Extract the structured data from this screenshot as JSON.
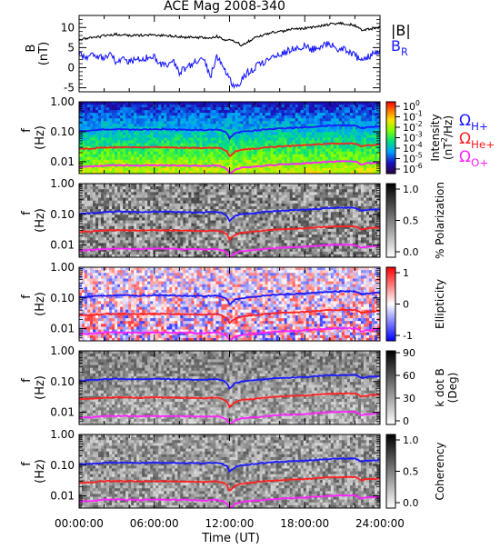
{
  "chart_data": {
    "type": "multi-panel",
    "title": "ACE Mag 2008-340",
    "xlabel": "Time (UT)",
    "x_ticks": [
      "00:00:00",
      "06:00:00",
      "12:00:00",
      "18:00:00",
      "24:00:00"
    ],
    "x_range_hours": [
      0,
      24
    ],
    "panels": [
      {
        "name": "magnetic-field",
        "type": "line",
        "ylabel": "B",
        "yunits": "(nT)",
        "y_ticks": [
          "10",
          "5",
          "0",
          "-5"
        ],
        "ylim": [
          -6,
          13
        ],
        "series": [
          {
            "name": "|B|",
            "color": "#000000",
            "x": [
              0,
              0.5,
              1,
              1.5,
              2,
              2.5,
              3,
              3.5,
              4,
              4.5,
              5,
              5.5,
              6,
              6.5,
              7,
              7.5,
              8,
              8.5,
              9,
              9.5,
              10,
              10.5,
              11,
              11.5,
              12,
              12.5,
              13,
              13.5,
              14,
              14.5,
              15,
              15.5,
              16,
              16.5,
              17,
              17.5,
              18,
              18.5,
              19,
              19.5,
              20,
              20.5,
              21,
              21.5,
              22,
              22.5,
              23,
              23.5,
              24
            ],
            "values": [
              7,
              7.2,
              7.5,
              7.6,
              8,
              8.2,
              8.3,
              8.2,
              8.1,
              8,
              8.1,
              8,
              8.2,
              8,
              8,
              7.8,
              7.8,
              7.5,
              7.6,
              7.5,
              7.5,
              7.3,
              7.8,
              7,
              6.8,
              6.5,
              5.5,
              6.5,
              7.5,
              8,
              8.5,
              8.8,
              9,
              9.2,
              9.5,
              9.7,
              9.8,
              10,
              10.2,
              10.5,
              10.8,
              11,
              11,
              10.8,
              10.5,
              9.5,
              9.5,
              9.8,
              10
            ]
          },
          {
            "name": "B_R",
            "color": "#1a1aff",
            "x": [
              0,
              0.5,
              1,
              1.5,
              2,
              2.5,
              3,
              3.5,
              4,
              4.5,
              5,
              5.5,
              6,
              6.5,
              7,
              7.5,
              8,
              8.5,
              9,
              9.5,
              10,
              10.5,
              11,
              11.5,
              12,
              12.5,
              13,
              13.5,
              14,
              14.5,
              15,
              15.5,
              16,
              16.5,
              17,
              17.5,
              18,
              18.5,
              19,
              19.5,
              20,
              20.5,
              21,
              21.5,
              22,
              22.5,
              23,
              23.5,
              24
            ],
            "values": [
              4,
              2.5,
              3,
              2.5,
              2.5,
              3,
              1.5,
              2,
              1.5,
              2,
              2,
              2.5,
              2.5,
              1,
              0.5,
              1.5,
              -1,
              0,
              1,
              2,
              1.5,
              -2,
              3,
              0,
              -3,
              -5,
              -3,
              -1,
              0,
              1,
              2,
              3,
              3.5,
              4,
              4.5,
              5,
              5.5,
              4.5,
              5,
              5.5,
              6,
              5,
              4.5,
              4,
              3,
              2,
              2.5,
              3.5,
              4
            ]
          }
        ],
        "legend": [
          "|B|",
          "B_R"
        ]
      },
      {
        "name": "intensity",
        "type": "heatmap",
        "ylabel": "f",
        "yunits": "(Hz)",
        "y_ticks": [
          "1.00",
          "0.10",
          "0.01"
        ],
        "ylim": [
          0.004,
          1.0
        ],
        "log_y": true,
        "colorbar": {
          "label": "Intensity",
          "units": "(nT^2/Hz)",
          "ticks": [
            "10^0",
            "10^-1",
            "10^-2",
            "10^-3",
            "10^-4",
            "10^-5",
            "10^-6"
          ],
          "colormap": "rainbow"
        }
      },
      {
        "name": "polarization",
        "type": "heatmap",
        "ylabel": "f",
        "yunits": "(Hz)",
        "y_ticks": [
          "1.00",
          "0.10",
          "0.01"
        ],
        "ylim": [
          0.004,
          1.0
        ],
        "log_y": true,
        "colorbar": {
          "label": "% Polarization",
          "ticks": [
            "1.0",
            "0.5",
            "0.0"
          ],
          "colormap": "gray"
        }
      },
      {
        "name": "ellipticity",
        "type": "heatmap",
        "ylabel": "f",
        "yunits": "(Hz)",
        "y_ticks": [
          "1.00",
          "0.10",
          "0.01"
        ],
        "ylim": [
          0.004,
          1.0
        ],
        "log_y": true,
        "colorbar": {
          "label": "Ellipticity",
          "ticks": [
            "1",
            "0",
            "-1"
          ],
          "colormap": "blue-white-red"
        }
      },
      {
        "name": "k-dot-b",
        "type": "heatmap",
        "ylabel": "f",
        "yunits": "(Hz)",
        "y_ticks": [
          "1.00",
          "0.10",
          "0.01"
        ],
        "ylim": [
          0.004,
          1.0
        ],
        "log_y": true,
        "colorbar": {
          "label": "k dot B",
          "units": "(Deg)",
          "ticks": [
            "90",
            "60",
            "30",
            "0"
          ],
          "colormap": "gray"
        }
      },
      {
        "name": "coherency",
        "type": "heatmap",
        "ylabel": "f",
        "yunits": "(Hz)",
        "y_ticks": [
          "1.00",
          "0.10",
          "0.01"
        ],
        "ylim": [
          0.004,
          1.0
        ],
        "log_y": true,
        "colorbar": {
          "label": "Coherency",
          "ticks": [
            "1.0",
            "0.5",
            "0.0"
          ],
          "colormap": "gray"
        }
      }
    ],
    "gyrofrequency_lines": [
      {
        "name": "Ω_H+",
        "color": "#1a1aff",
        "x": [
          0,
          1,
          2,
          3,
          4,
          5,
          6,
          7,
          8,
          9,
          10,
          11,
          11.5,
          11.8,
          12,
          12.5,
          13,
          14,
          15,
          16,
          17,
          18,
          19,
          20,
          21,
          22,
          22.5,
          23,
          24
        ],
        "values": [
          0.107,
          0.11,
          0.12,
          0.122,
          0.12,
          0.118,
          0.122,
          0.12,
          0.118,
          0.116,
          0.114,
          0.12,
          0.105,
          0.09,
          0.06,
          0.09,
          0.1,
          0.11,
          0.12,
          0.13,
          0.135,
          0.14,
          0.15,
          0.16,
          0.165,
          0.165,
          0.13,
          0.14,
          0.15
        ]
      },
      {
        "name": "Ω_He+",
        "color": "#ff2020",
        "x": [
          0,
          1,
          2,
          3,
          4,
          5,
          6,
          7,
          8,
          9,
          10,
          11,
          11.5,
          11.8,
          12,
          12.5,
          13,
          14,
          15,
          16,
          17,
          18,
          19,
          20,
          21,
          22,
          22.5,
          23,
          24
        ],
        "values": [
          0.027,
          0.0275,
          0.03,
          0.0305,
          0.03,
          0.0295,
          0.0305,
          0.03,
          0.0295,
          0.029,
          0.0285,
          0.03,
          0.026,
          0.022,
          0.015,
          0.022,
          0.025,
          0.0275,
          0.03,
          0.0325,
          0.034,
          0.035,
          0.0375,
          0.04,
          0.041,
          0.041,
          0.0325,
          0.035,
          0.0375
        ]
      },
      {
        "name": "Ω_O+",
        "color": "#ff20ff",
        "x": [
          0,
          1,
          2,
          3,
          4,
          5,
          6,
          7,
          8,
          9,
          10,
          11,
          11.5,
          11.8,
          12,
          12.5,
          13,
          14,
          15,
          16,
          17,
          18,
          19,
          20,
          21,
          22,
          22.5,
          23,
          24
        ],
        "values": [
          0.0067,
          0.0069,
          0.0075,
          0.0076,
          0.0075,
          0.0074,
          0.0076,
          0.0075,
          0.0074,
          0.0073,
          0.0071,
          0.0075,
          0.0066,
          0.0056,
          0.0038,
          0.0056,
          0.0063,
          0.0069,
          0.0075,
          0.0081,
          0.0084,
          0.0088,
          0.0094,
          0.01,
          0.0103,
          0.0103,
          0.0081,
          0.0088,
          0.0094
        ]
      }
    ]
  }
}
